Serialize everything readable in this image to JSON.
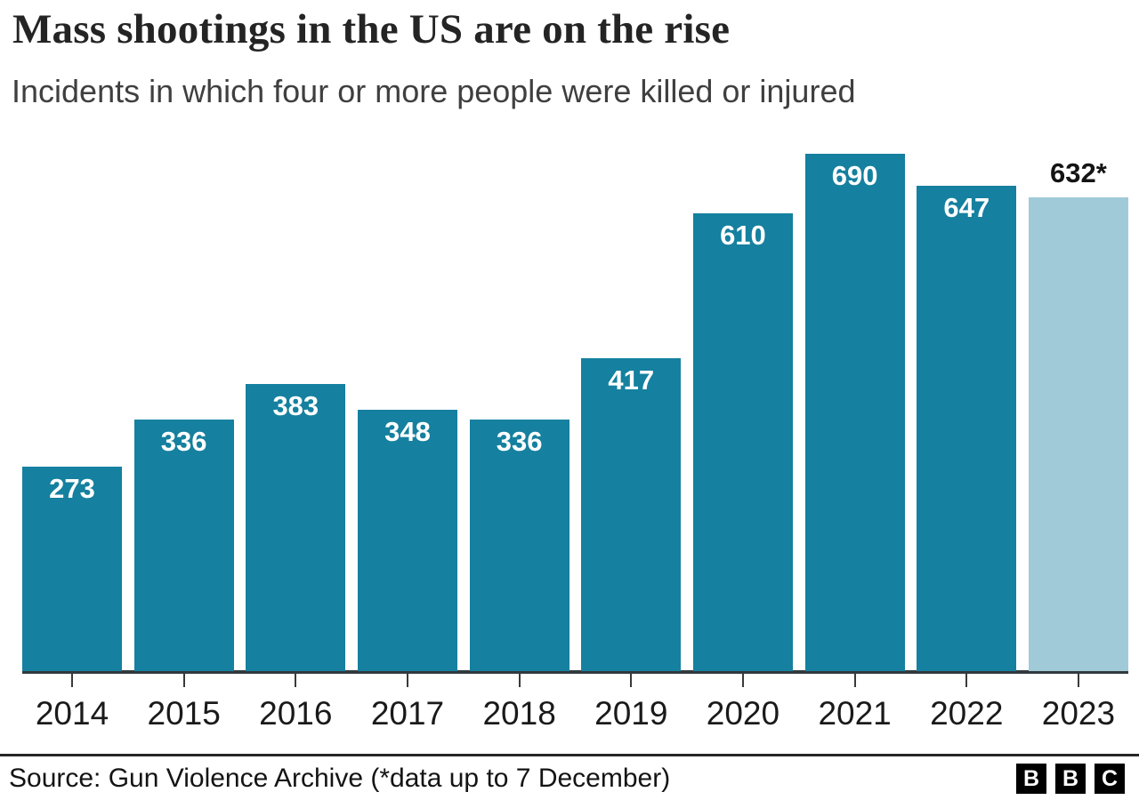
{
  "header": {
    "title": "Mass shootings in the US are on the rise",
    "subtitle": "Incidents in which four or more people were killed or injured"
  },
  "chart_data": {
    "type": "bar",
    "title": "Mass shootings in the US are on the rise",
    "subtitle": "Incidents in which four or more people were killed or injured",
    "categories": [
      "2014",
      "2015",
      "2016",
      "2017",
      "2018",
      "2019",
      "2020",
      "2021",
      "2022",
      "2023"
    ],
    "values": [
      273,
      336,
      383,
      348,
      336,
      417,
      610,
      690,
      647,
      632
    ],
    "value_labels": [
      "273",
      "336",
      "383",
      "348",
      "336",
      "417",
      "610",
      "690",
      "647",
      "632*"
    ],
    "ylim": [
      0,
      690
    ],
    "xlabel": "",
    "ylabel": "",
    "grid": false,
    "legend": false,
    "bar_color": "#15809f",
    "partial_bar_color": "#a1cad8",
    "partial_year_index": 9,
    "label_color_inside": "#ffffff",
    "label_color_above": "#141414",
    "annotation": "2023 bar is lighter: partial-year data up to 7 December, value label shown in black above the bar"
  },
  "footer": {
    "source": "Source: Gun Violence Archive (*data up to 7 December)",
    "logo_letters": [
      "B",
      "B",
      "C"
    ]
  }
}
